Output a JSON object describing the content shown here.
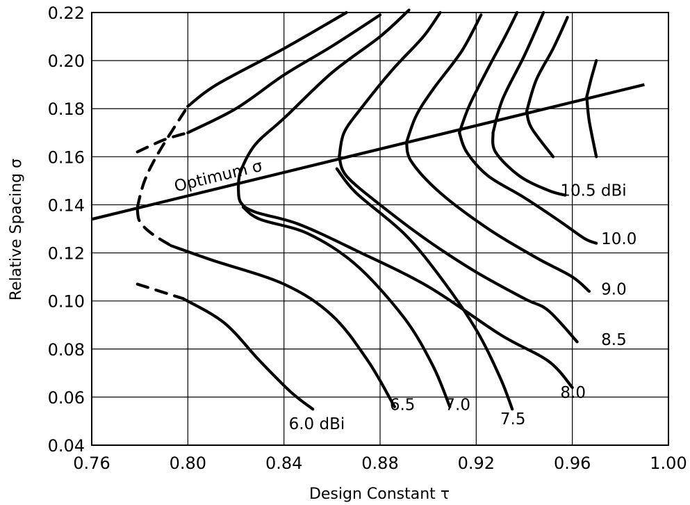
{
  "chart_data": {
    "type": "line",
    "xlabel": "Design Constant τ",
    "ylabel": "Relative Spacing σ",
    "xlim": [
      0.76,
      1.0
    ],
    "ylim": [
      0.04,
      0.22
    ],
    "x_ticks": [
      "0.76",
      "0.80",
      "0.84",
      "0.88",
      "0.92",
      "0.96",
      "1.00"
    ],
    "y_ticks": [
      "0.04",
      "0.06",
      "0.08",
      "0.10",
      "0.12",
      "0.14",
      "0.16",
      "0.18",
      "0.20",
      "0.22"
    ],
    "grid": true,
    "optimum_line": {
      "label": "Optimum σ",
      "points": [
        [
          0.76,
          0.134
        ],
        [
          0.99,
          0.19
        ]
      ]
    },
    "series": [
      {
        "name": "6.0 dBi",
        "label_at": [
          0.842,
          0.049
        ],
        "points": [
          [
            0.798,
            0.101
          ],
          [
            0.815,
            0.091
          ],
          [
            0.83,
            0.075
          ],
          [
            0.843,
            0.062
          ],
          [
            0.852,
            0.055
          ]
        ],
        "dashed_points": [
          [
            0.779,
            0.107
          ],
          [
            0.798,
            0.101
          ]
        ]
      },
      {
        "name": "6.5",
        "label_at": [
          0.884,
          0.057
        ],
        "points": [
          [
            0.793,
            0.123
          ],
          [
            0.81,
            0.117
          ],
          [
            0.84,
            0.107
          ],
          [
            0.86,
            0.094
          ],
          [
            0.875,
            0.075
          ],
          [
            0.886,
            0.056
          ]
        ],
        "dashed_points": [
          [
            0.779,
            0.138
          ],
          [
            0.78,
            0.133
          ],
          [
            0.785,
            0.128
          ],
          [
            0.793,
            0.123
          ]
        ]
      },
      {
        "name": "7.0",
        "label_at": [
          0.907,
          0.057
        ],
        "points": [
          [
            0.8,
            0.181
          ],
          [
            0.812,
            0.19
          ],
          [
            0.84,
            0.205
          ],
          [
            0.866,
            0.22
          ]
        ],
        "dashed_points": [
          [
            0.779,
            0.139
          ],
          [
            0.782,
            0.15
          ],
          [
            0.788,
            0.162
          ],
          [
            0.8,
            0.181
          ]
        ],
        "lower_points": [
          [
            0.823,
            0.139
          ],
          [
            0.83,
            0.134
          ],
          [
            0.85,
            0.128
          ],
          [
            0.87,
            0.115
          ],
          [
            0.89,
            0.093
          ],
          [
            0.902,
            0.073
          ],
          [
            0.909,
            0.056
          ]
        ]
      },
      {
        "name": "7.5",
        "label_at": [
          0.93,
          0.051
        ],
        "points": [
          [
            0.8,
            0.17
          ],
          [
            0.82,
            0.18
          ],
          [
            0.84,
            0.194
          ],
          [
            0.86,
            0.206
          ],
          [
            0.88,
            0.219
          ]
        ],
        "dashed_points": [
          [
            0.779,
            0.162
          ],
          [
            0.79,
            0.167
          ],
          [
            0.8,
            0.17
          ]
        ],
        "lower_points": [
          [
            0.862,
            0.155
          ],
          [
            0.87,
            0.145
          ],
          [
            0.89,
            0.128
          ],
          [
            0.905,
            0.11
          ],
          [
            0.92,
            0.088
          ],
          [
            0.93,
            0.068
          ],
          [
            0.935,
            0.055
          ]
        ]
      },
      {
        "name": "8.0",
        "label_at": [
          0.955,
          0.062
        ],
        "points": [
          [
            0.821,
            0.147
          ],
          [
            0.822,
            0.154
          ],
          [
            0.828,
            0.165
          ],
          [
            0.84,
            0.176
          ],
          [
            0.86,
            0.195
          ],
          [
            0.88,
            0.21
          ],
          [
            0.892,
            0.221
          ]
        ],
        "lower_points": [
          [
            0.821,
            0.147
          ],
          [
            0.822,
            0.141
          ],
          [
            0.828,
            0.137
          ],
          [
            0.846,
            0.132
          ],
          [
            0.87,
            0.121
          ],
          [
            0.9,
            0.106
          ],
          [
            0.93,
            0.086
          ],
          [
            0.95,
            0.075
          ],
          [
            0.96,
            0.064
          ]
        ]
      },
      {
        "name": "8.5",
        "label_at": [
          0.972,
          0.084
        ],
        "points": [
          [
            0.863,
            0.16
          ],
          [
            0.865,
            0.17
          ],
          [
            0.872,
            0.18
          ],
          [
            0.885,
            0.196
          ],
          [
            0.898,
            0.21
          ],
          [
            0.905,
            0.22
          ]
        ],
        "lower_points": [
          [
            0.863,
            0.16
          ],
          [
            0.866,
            0.152
          ],
          [
            0.88,
            0.14
          ],
          [
            0.9,
            0.125
          ],
          [
            0.92,
            0.112
          ],
          [
            0.94,
            0.101
          ],
          [
            0.95,
            0.096
          ],
          [
            0.962,
            0.083
          ]
        ]
      },
      {
        "name": "9.0",
        "label_at": [
          0.972,
          0.105
        ],
        "points": [
          [
            0.891,
            0.166
          ],
          [
            0.895,
            0.177
          ],
          [
            0.902,
            0.188
          ],
          [
            0.914,
            0.204
          ],
          [
            0.922,
            0.219
          ]
        ],
        "lower_points": [
          [
            0.891,
            0.166
          ],
          [
            0.893,
            0.158
          ],
          [
            0.905,
            0.145
          ],
          [
            0.925,
            0.13
          ],
          [
            0.945,
            0.118
          ],
          [
            0.96,
            0.11
          ],
          [
            0.967,
            0.104
          ]
        ]
      },
      {
        "name": "10.0",
        "label_at": [
          0.972,
          0.126
        ],
        "points": [
          [
            0.913,
            0.17
          ],
          [
            0.917,
            0.181
          ],
          [
            0.924,
            0.195
          ],
          [
            0.932,
            0.21
          ],
          [
            0.937,
            0.22
          ]
        ],
        "lower_points": [
          [
            0.913,
            0.17
          ],
          [
            0.916,
            0.162
          ],
          [
            0.925,
            0.152
          ],
          [
            0.94,
            0.143
          ],
          [
            0.955,
            0.133
          ],
          [
            0.965,
            0.126
          ],
          [
            0.97,
            0.124
          ]
        ]
      },
      {
        "name": "10.5 dBi",
        "label_at": [
          0.955,
          0.146
        ],
        "points": [
          [
            0.927,
            0.17
          ],
          [
            0.931,
            0.184
          ],
          [
            0.94,
            0.202
          ],
          [
            0.948,
            0.22
          ]
        ],
        "lower_points": [
          [
            0.927,
            0.17
          ],
          [
            0.928,
            0.162
          ],
          [
            0.938,
            0.152
          ],
          [
            0.95,
            0.146
          ],
          [
            0.957,
            0.144
          ]
        ],
        "upper_points": [
          [
            0.941,
            0.179
          ],
          [
            0.945,
            0.192
          ],
          [
            0.952,
            0.205
          ],
          [
            0.958,
            0.218
          ]
        ],
        "upper_lower_points": [
          [
            0.941,
            0.179
          ],
          [
            0.943,
            0.172
          ],
          [
            0.952,
            0.16
          ]
        ],
        "cap_points": [
          [
            0.966,
            0.185
          ],
          [
            0.968,
            0.193
          ],
          [
            0.97,
            0.2
          ]
        ],
        "cap_lower_points": [
          [
            0.966,
            0.185
          ],
          [
            0.967,
            0.175
          ],
          [
            0.97,
            0.16
          ]
        ]
      }
    ]
  }
}
